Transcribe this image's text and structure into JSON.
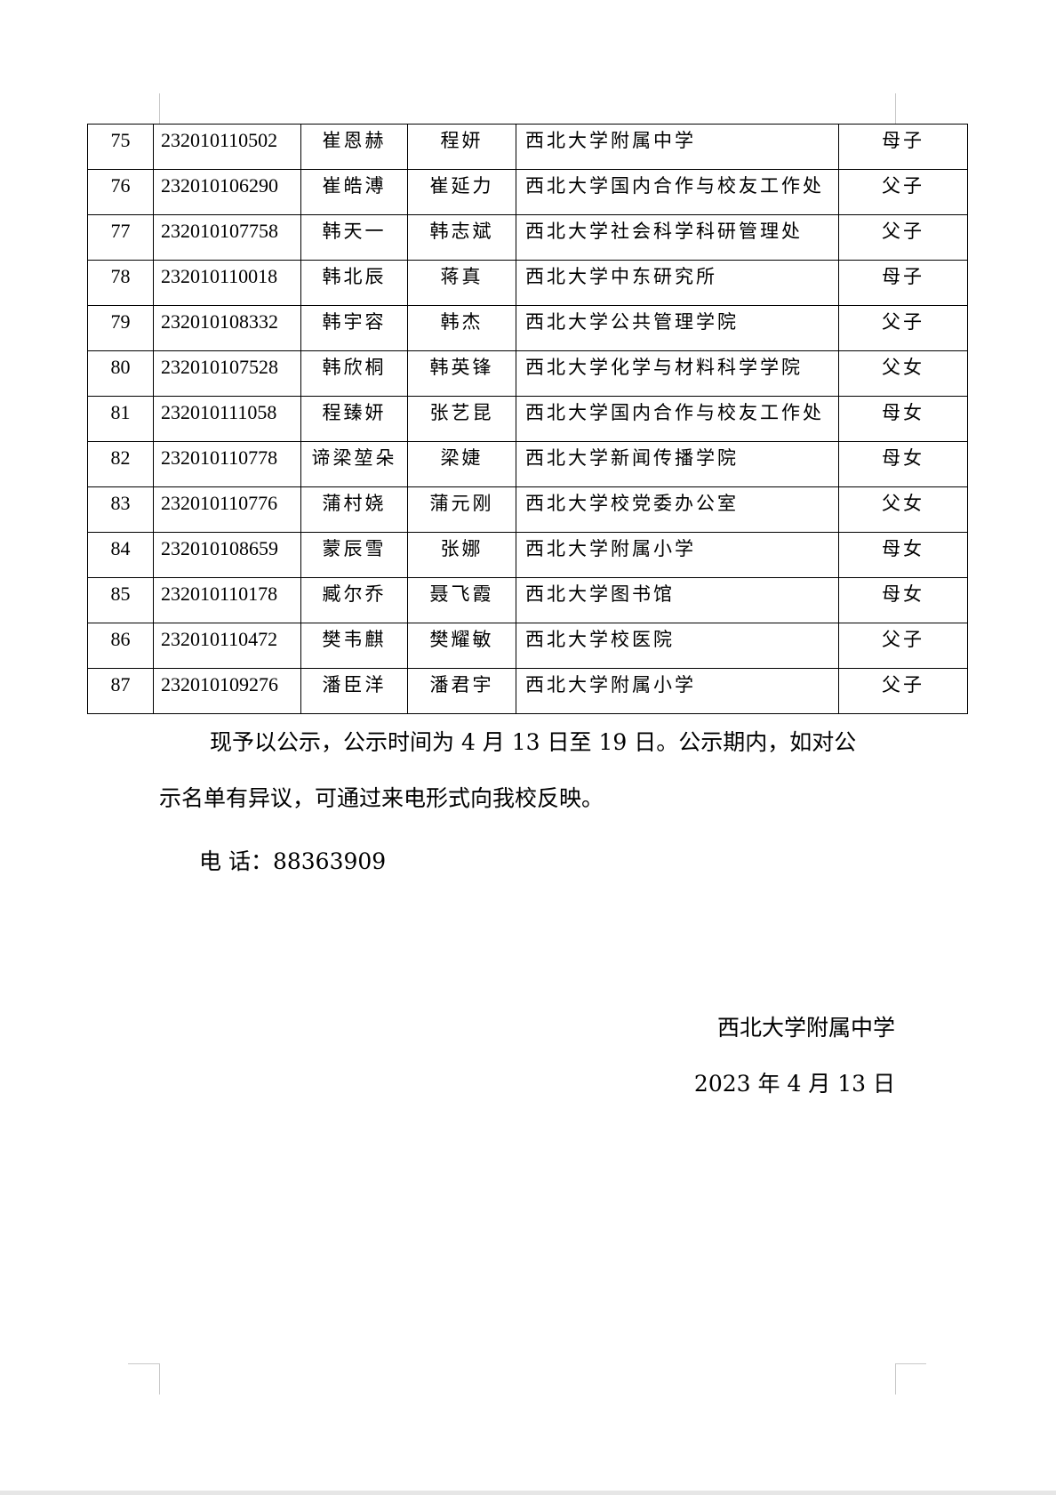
{
  "table": {
    "rows": [
      [
        "75",
        "232010110502",
        "崔恩赫",
        "程妍",
        "西北大学附属中学",
        "母子"
      ],
      [
        "76",
        "232010106290",
        "崔皓溥",
        "崔延力",
        "西北大学国内合作与校友工作处",
        "父子"
      ],
      [
        "77",
        "232010107758",
        "韩天一",
        "韩志斌",
        "西北大学社会科学科研管理处",
        "父子"
      ],
      [
        "78",
        "232010110018",
        "韩北辰",
        "蒋真",
        "西北大学中东研究所",
        "母子"
      ],
      [
        "79",
        "232010108332",
        "韩宇容",
        "韩杰",
        "西北大学公共管理学院",
        "父子"
      ],
      [
        "80",
        "232010107528",
        "韩欣桐",
        "韩英锋",
        "西北大学化学与材料科学学院",
        "父女"
      ],
      [
        "81",
        "232010111058",
        "程臻妍",
        "张艺昆",
        "西北大学国内合作与校友工作处",
        "母女"
      ],
      [
        "82",
        "232010110778",
        "谛梁堃朵",
        "梁婕",
        "西北大学新闻传播学院",
        "母女"
      ],
      [
        "83",
        "232010110776",
        "蒲村娆",
        "蒲元刚",
        "西北大学校党委办公室",
        "父女"
      ],
      [
        "84",
        "232010108659",
        "蒙辰雪",
        "张娜",
        "西北大学附属小学",
        "母女"
      ],
      [
        "85",
        "232010110178",
        "臧尔乔",
        "聂飞霞",
        "西北大学图书馆",
        "母女"
      ],
      [
        "86",
        "232010110472",
        "樊韦麒",
        "樊耀敏",
        "西北大学校医院",
        "父子"
      ],
      [
        "87",
        "232010109276",
        "潘臣洋",
        "潘君宇",
        "西北大学附属小学",
        "父子"
      ]
    ]
  },
  "notice": {
    "line1": "现予以公示，公示时间为 4 月 13 日至 19 日。公示期内，如对公",
    "line2": "示名单有异议，可通过来电形式向我校反映。",
    "phone": "电 话：88363909"
  },
  "signature": {
    "org": "西北大学附属中学",
    "date": "2023 年 4 月 13 日"
  }
}
